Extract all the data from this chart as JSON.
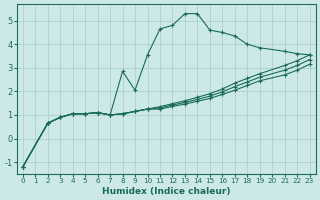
{
  "xlabel": "Humidex (Indice chaleur)",
  "ylabel": "",
  "bg_color": "#cce8e8",
  "grid_color": "#aacccc",
  "line_color": "#1a6b5a",
  "xlim": [
    -0.5,
    23.5
  ],
  "ylim": [
    -1.5,
    5.7
  ],
  "xticks": [
    0,
    1,
    2,
    3,
    4,
    5,
    6,
    7,
    8,
    9,
    10,
    11,
    12,
    13,
    14,
    15,
    16,
    17,
    18,
    19,
    20,
    21,
    22,
    23
  ],
  "yticks": [
    -1,
    0,
    1,
    2,
    3,
    4,
    5
  ],
  "lines": [
    {
      "x": [
        0,
        2,
        3,
        4,
        5,
        6,
        7,
        8,
        9,
        10,
        11,
        12,
        13,
        14,
        15,
        16,
        17,
        18,
        19,
        21,
        22,
        23
      ],
      "y": [
        -1.2,
        0.65,
        0.9,
        1.05,
        1.05,
        1.1,
        1.0,
        2.85,
        2.05,
        3.55,
        4.65,
        4.8,
        5.3,
        5.3,
        4.6,
        4.5,
        4.35,
        4.0,
        3.85,
        3.7,
        3.6,
        3.55
      ]
    },
    {
      "x": [
        0,
        2,
        3,
        4,
        5,
        6,
        7,
        8,
        9,
        10,
        11,
        12,
        13,
        14,
        15,
        16,
        17,
        18,
        19,
        21,
        22,
        23
      ],
      "y": [
        -1.2,
        0.65,
        0.9,
        1.05,
        1.05,
        1.1,
        1.0,
        1.05,
        1.15,
        1.25,
        1.35,
        1.48,
        1.6,
        1.75,
        1.9,
        2.1,
        2.35,
        2.55,
        2.75,
        3.1,
        3.3,
        3.55
      ]
    },
    {
      "x": [
        0,
        2,
        3,
        4,
        5,
        6,
        7,
        8,
        9,
        10,
        11,
        12,
        13,
        14,
        15,
        16,
        17,
        18,
        19,
        21,
        22,
        23
      ],
      "y": [
        -1.2,
        0.65,
        0.9,
        1.05,
        1.05,
        1.1,
        1.0,
        1.05,
        1.15,
        1.25,
        1.3,
        1.42,
        1.53,
        1.66,
        1.8,
        1.98,
        2.2,
        2.4,
        2.6,
        2.9,
        3.1,
        3.35
      ]
    },
    {
      "x": [
        0,
        2,
        3,
        4,
        5,
        6,
        7,
        8,
        9,
        10,
        11,
        12,
        13,
        14,
        15,
        16,
        17,
        18,
        19,
        21,
        22,
        23
      ],
      "y": [
        -1.2,
        0.65,
        0.9,
        1.05,
        1.05,
        1.1,
        1.0,
        1.05,
        1.15,
        1.25,
        1.25,
        1.36,
        1.46,
        1.58,
        1.7,
        1.87,
        2.05,
        2.25,
        2.45,
        2.7,
        2.9,
        3.15
      ]
    }
  ]
}
